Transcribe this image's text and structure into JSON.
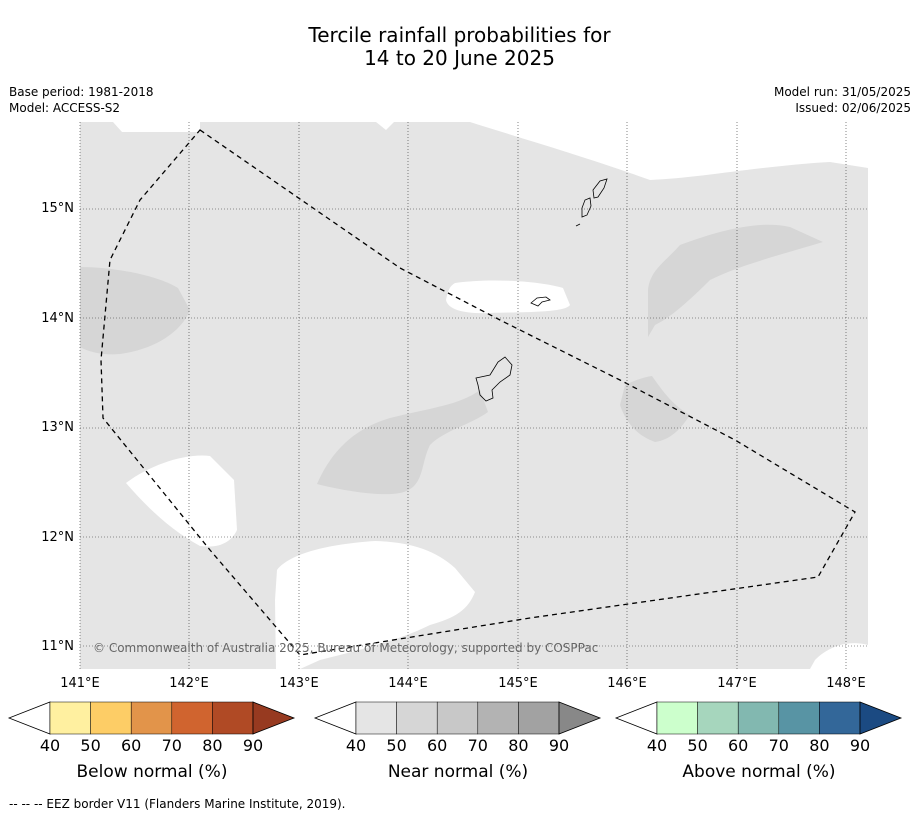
{
  "title_line1": "Tercile rainfall probabilities for",
  "title_line2": "14 to 20 June 2025",
  "meta": {
    "base_period": "Base period: 1981-2018",
    "model": "Model: ACCESS-S2",
    "model_run": "Model run: 31/05/2025",
    "issued": "Issued: 02/06/2025"
  },
  "map": {
    "lon_ticks": [
      "141°E",
      "142°E",
      "143°E",
      "144°E",
      "145°E",
      "146°E",
      "147°E",
      "148°E"
    ],
    "lat_ticks": [
      "15°N",
      "14°N",
      "13°N",
      "12°N",
      "11°N"
    ],
    "copyright": "© Commonwealth of Australia 2025, Bureau of Meteorology, supported by COSPPac",
    "colors": {
      "near_normal_40_50": "#e5e5e5",
      "near_normal_50_60": "#d6d6d6",
      "no_dominant_tercile": "#ffffff"
    }
  },
  "colorbars": [
    {
      "label": "Below normal (%)",
      "ticks": [
        "40",
        "50",
        "60",
        "70",
        "80",
        "90"
      ],
      "colors": [
        "#ffffff",
        "#fff0a0",
        "#fdcd66",
        "#e2944a",
        "#d0642f",
        "#b04a25",
        "#973a20"
      ]
    },
    {
      "label": "Near normal (%)",
      "ticks": [
        "40",
        "50",
        "60",
        "70",
        "80",
        "90"
      ],
      "colors": [
        "#ffffff",
        "#e5e5e5",
        "#d6d6d6",
        "#c8c8c8",
        "#b3b3b3",
        "#a2a2a2",
        "#888888"
      ]
    },
    {
      "label": "Above normal (%)",
      "ticks": [
        "40",
        "50",
        "60",
        "70",
        "80",
        "90"
      ],
      "colors": [
        "#ffffff",
        "#ccffcc",
        "#a6d6bd",
        "#82b8b0",
        "#5894a4",
        "#336799",
        "#1b4a82"
      ]
    }
  ],
  "footnote": "--  --  -- EEZ border V11 (Flanders Marine Institute, 2019)."
}
